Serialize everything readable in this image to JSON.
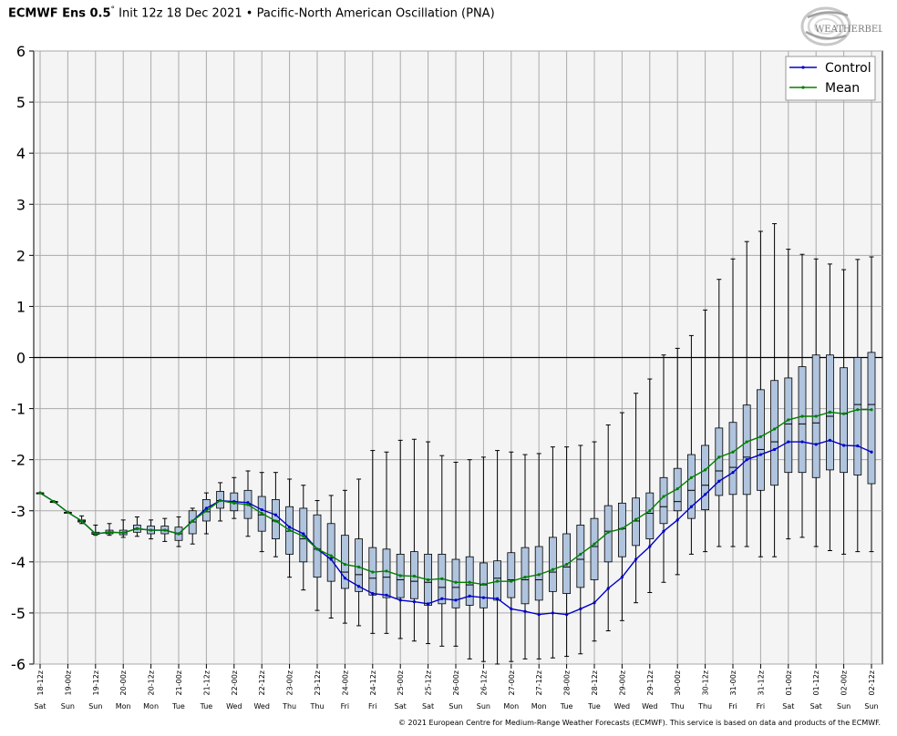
{
  "header": {
    "model": "ECMWF Ens 0.5",
    "degree": "°",
    "rest": "Init 12z 18 Dec 2021 • Pacific-North American Oscillation (PNA)"
  },
  "logo_text": "WEATHERBELL",
  "footer": {
    "copyright": "© 2021 European Centre for Medium-Range Weather Forecasts (ECMWF). This service is based on data and products of the ECMWF."
  },
  "colors": {
    "control": "#0000cc",
    "mean": "#008000",
    "box_fill": "#b0c4de",
    "plot_bg": "#f4f4f4",
    "grid": "#aaaaaa"
  },
  "chart_data": {
    "type": "box",
    "ylim": [
      -6,
      6
    ],
    "yticks": [
      "6",
      "5",
      "4",
      "3",
      "2",
      "1",
      "0",
      "-1",
      "-2",
      "-3",
      "-4",
      "-5",
      "-6"
    ],
    "grid": true,
    "zero_line": true,
    "legend_position": "top-right",
    "x_labels": [
      "18-12z",
      "19-00z",
      "19-12z",
      "20-00z",
      "20-12z",
      "21-00z",
      "21-12z",
      "22-00z",
      "22-12z",
      "23-00z",
      "23-12z",
      "24-00z",
      "24-12z",
      "25-00z",
      "25-12z",
      "26-00z",
      "26-12z",
      "27-00z",
      "27-12z",
      "28-00z",
      "28-12z",
      "29-00z",
      "29-12z",
      "30-00z",
      "30-12z",
      "31-00z",
      "31-12z",
      "01-00z",
      "01-12z",
      "02-00z",
      "02-12z"
    ],
    "x_days": [
      "Sat",
      "Sun",
      "Sun",
      "Mon",
      "Mon",
      "Tue",
      "Tue",
      "Wed",
      "Wed",
      "Thu",
      "Thu",
      "Fri",
      "Fri",
      "Sat",
      "Sat",
      "Sun",
      "Sun",
      "Mon",
      "Mon",
      "Tue",
      "Tue",
      "Wed",
      "Wed",
      "Thu",
      "Thu",
      "Fri",
      "Fri",
      "Sat",
      "Sat",
      "Sun",
      "Sun"
    ],
    "series": [
      {
        "name": "Control",
        "values": [
          -2.65,
          -2.82,
          -3.03,
          -3.2,
          -3.45,
          -3.42,
          -3.43,
          -3.35,
          -3.38,
          -3.38,
          -3.45,
          -3.2,
          -2.95,
          -2.8,
          -2.82,
          -2.84,
          -2.98,
          -3.08,
          -3.32,
          -3.45,
          -3.75,
          -3.95,
          -4.32,
          -4.48,
          -4.62,
          -4.65,
          -4.75,
          -4.78,
          -4.82,
          -4.72,
          -4.75,
          -4.67,
          -4.7,
          -4.72,
          -4.92,
          -4.97,
          -5.03,
          -5.0,
          -5.03,
          -4.92,
          -4.8,
          -4.52,
          -4.3,
          -3.95,
          -3.7,
          -3.4,
          -3.18,
          -2.92,
          -2.68,
          -2.42,
          -2.25,
          -2.0,
          -1.9,
          -1.8,
          -1.65,
          -1.65,
          -1.7,
          -1.62,
          -1.72,
          -1.73,
          -1.85
        ]
      },
      {
        "name": "Mean",
        "values": [
          -2.65,
          -2.82,
          -3.03,
          -3.2,
          -3.45,
          -3.42,
          -3.43,
          -3.35,
          -3.38,
          -3.38,
          -3.45,
          -3.2,
          -3.0,
          -2.8,
          -2.85,
          -2.88,
          -3.05,
          -3.2,
          -3.38,
          -3.5,
          -3.75,
          -3.88,
          -4.05,
          -4.1,
          -4.2,
          -4.18,
          -4.27,
          -4.28,
          -4.35,
          -4.33,
          -4.4,
          -4.4,
          -4.44,
          -4.38,
          -4.38,
          -4.3,
          -4.25,
          -4.15,
          -4.05,
          -3.85,
          -3.65,
          -3.42,
          -3.35,
          -3.17,
          -3.0,
          -2.72,
          -2.57,
          -2.35,
          -2.2,
          -1.95,
          -1.85,
          -1.65,
          -1.55,
          -1.4,
          -1.22,
          -1.15,
          -1.15,
          -1.07,
          -1.1,
          -1.02,
          -1.02
        ]
      },
      {
        "name": "min",
        "values": [
          -2.65,
          -2.82,
          -3.03,
          -3.25,
          -3.48,
          -3.48,
          -3.52,
          -3.5,
          -3.55,
          -3.6,
          -3.7,
          -3.65,
          -3.45,
          -3.2,
          -3.15,
          -3.5,
          -3.8,
          -3.9,
          -4.3,
          -4.55,
          -4.95,
          -5.1,
          -5.2,
          -5.25,
          -5.4,
          -5.4,
          -5.5,
          -5.55,
          -5.6,
          -5.65,
          -5.65,
          -5.9,
          -5.95,
          -6.0,
          -5.95,
          -5.9,
          -5.9,
          -5.88,
          -5.85,
          -5.8,
          -5.55,
          -5.35,
          -5.15,
          -4.8,
          -4.6,
          -4.4,
          -4.25,
          -3.85,
          -3.8,
          -3.7,
          -3.7,
          -3.7,
          -3.9,
          -3.9,
          -3.55,
          -3.52,
          -3.7,
          -3.78,
          -3.85,
          -3.8,
          -3.8
        ]
      },
      {
        "name": "q1",
        "values": [
          -2.65,
          -2.82,
          -3.03,
          -3.22,
          -3.46,
          -3.45,
          -3.47,
          -3.42,
          -3.45,
          -3.45,
          -3.58,
          -3.45,
          -3.2,
          -2.95,
          -3.0,
          -3.15,
          -3.4,
          -3.55,
          -3.85,
          -4.0,
          -4.3,
          -4.38,
          -4.52,
          -4.58,
          -4.65,
          -4.7,
          -4.7,
          -4.72,
          -4.85,
          -4.82,
          -4.9,
          -4.85,
          -4.9,
          -4.75,
          -4.7,
          -4.82,
          -4.75,
          -4.58,
          -4.62,
          -4.5,
          -4.35,
          -4.0,
          -3.9,
          -3.68,
          -3.55,
          -3.25,
          -3.0,
          -3.15,
          -2.98,
          -2.7,
          -2.68,
          -2.68,
          -2.6,
          -2.5,
          -2.25,
          -2.25,
          -2.35,
          -2.2,
          -2.25,
          -2.3,
          -2.47
        ]
      },
      {
        "name": "median",
        "values": [
          -2.65,
          -2.82,
          -3.03,
          -3.2,
          -3.45,
          -3.42,
          -3.43,
          -3.35,
          -3.38,
          -3.38,
          -3.45,
          -3.22,
          -3.02,
          -2.8,
          -2.82,
          -2.88,
          -3.08,
          -3.2,
          -3.4,
          -3.55,
          -3.75,
          -3.92,
          -4.2,
          -4.25,
          -4.32,
          -4.3,
          -4.35,
          -4.38,
          -4.4,
          -4.5,
          -4.5,
          -4.45,
          -4.45,
          -4.32,
          -4.35,
          -4.35,
          -4.35,
          -4.2,
          -4.1,
          -3.95,
          -3.7,
          -3.4,
          -3.35,
          -3.2,
          -3.05,
          -2.92,
          -2.82,
          -2.6,
          -2.5,
          -2.22,
          -2.15,
          -1.95,
          -1.8,
          -1.65,
          -1.3,
          -1.3,
          -1.28,
          -1.15,
          -1.1,
          -0.92,
          -0.92
        ]
      },
      {
        "name": "q3",
        "values": [
          -2.65,
          -2.82,
          -3.03,
          -3.18,
          -3.42,
          -3.38,
          -3.38,
          -3.28,
          -3.3,
          -3.3,
          -3.32,
          -3.0,
          -2.78,
          -2.62,
          -2.65,
          -2.6,
          -2.72,
          -2.78,
          -2.92,
          -2.95,
          -3.08,
          -3.25,
          -3.48,
          -3.55,
          -3.72,
          -3.75,
          -3.85,
          -3.8,
          -3.85,
          -3.85,
          -3.95,
          -3.9,
          -4.02,
          -3.98,
          -3.82,
          -3.72,
          -3.7,
          -3.52,
          -3.45,
          -3.28,
          -3.15,
          -2.9,
          -2.85,
          -2.75,
          -2.65,
          -2.35,
          -2.17,
          -1.9,
          -1.72,
          -1.38,
          -1.27,
          -0.93,
          -0.63,
          -0.45,
          -0.4,
          -0.18,
          0.05,
          0.05,
          -0.2,
          0.0,
          0.1
        ]
      },
      {
        "name": "max",
        "values": [
          -2.65,
          -2.82,
          -3.03,
          -3.1,
          -3.28,
          -3.25,
          -3.18,
          -3.12,
          -3.18,
          -3.15,
          -3.12,
          -2.95,
          -2.65,
          -2.45,
          -2.35,
          -2.22,
          -2.25,
          -2.25,
          -2.38,
          -2.5,
          -2.8,
          -2.7,
          -2.6,
          -2.38,
          -1.82,
          -1.85,
          -1.62,
          -1.6,
          -1.65,
          -1.92,
          -2.05,
          -2.0,
          -1.95,
          -1.82,
          -1.85,
          -1.9,
          -1.88,
          -1.75,
          -1.75,
          -1.72,
          -1.65,
          -1.32,
          -1.08,
          -0.7,
          -0.42,
          0.05,
          0.18,
          0.43,
          0.93,
          1.53,
          1.93,
          2.27,
          2.47,
          2.62,
          2.12,
          2.02,
          1.93,
          1.83,
          1.72,
          1.92,
          1.97
        ]
      }
    ]
  }
}
